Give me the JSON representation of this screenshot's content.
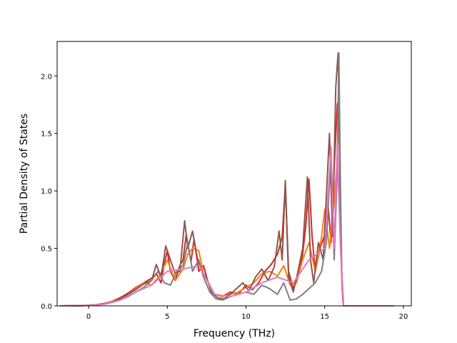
{
  "chart_data": {
    "type": "line",
    "xlabel": "Frequency (THz)",
    "ylabel": "Partial Density of States",
    "xlim": [
      -2.0,
      20.5
    ],
    "ylim": [
      0.0,
      2.3
    ],
    "xticks": [
      0,
      5,
      10,
      15,
      20
    ],
    "yticks": [
      0.0,
      0.5,
      1.0,
      1.5,
      2.0
    ],
    "xtick_labels": [
      "0",
      "5",
      "10",
      "15",
      "20"
    ],
    "ytick_labels": [
      "0.0",
      "0.5",
      "1.0",
      "1.5",
      "2.0"
    ],
    "grid": false,
    "series": [
      {
        "color": "#d62728",
        "x": [
          -1.8,
          -0.5,
          0.0,
          0.5,
          1.0,
          1.5,
          2.0,
          2.5,
          3.0,
          3.5,
          4.0,
          4.3,
          4.6,
          4.8,
          5.0,
          5.2,
          5.5,
          5.8,
          6.0,
          6.2,
          6.5,
          6.7,
          7.0,
          7.3,
          7.6,
          8.0,
          8.5,
          9.0,
          9.5,
          10.0,
          10.4,
          10.8,
          11.2,
          11.6,
          12.0,
          12.3,
          12.5,
          12.7,
          13.0,
          13.3,
          13.6,
          13.8,
          14.0,
          14.2,
          14.4,
          14.7,
          15.0,
          15.2,
          15.4,
          15.6,
          15.8,
          15.9,
          16.0,
          16.1,
          16.15,
          16.2,
          17.0,
          18.0,
          19.4
        ],
        "y": [
          0.0,
          0.0,
          0.005,
          0.01,
          0.02,
          0.04,
          0.07,
          0.11,
          0.16,
          0.2,
          0.24,
          0.28,
          0.2,
          0.36,
          0.48,
          0.3,
          0.22,
          0.35,
          0.4,
          0.62,
          0.38,
          0.58,
          0.3,
          0.35,
          0.2,
          0.1,
          0.08,
          0.12,
          0.1,
          0.18,
          0.14,
          0.2,
          0.3,
          0.36,
          0.45,
          0.6,
          1.05,
          0.3,
          0.15,
          0.25,
          0.45,
          0.7,
          1.1,
          0.6,
          0.3,
          0.5,
          0.62,
          0.9,
          0.55,
          1.2,
          1.75,
          1.8,
          0.7,
          0.2,
          0.05,
          0.0,
          0.0,
          0.0,
          0.0
        ]
      },
      {
        "color": "#ff7f0e",
        "x": [
          -1.8,
          0.0,
          0.5,
          1.0,
          1.5,
          2.0,
          2.5,
          3.0,
          3.5,
          4.0,
          4.5,
          5.0,
          5.5,
          6.0,
          6.3,
          6.6,
          7.0,
          7.3,
          7.7,
          8.0,
          8.5,
          9.0,
          9.5,
          10.0,
          10.5,
          11.0,
          11.5,
          12.0,
          12.4,
          12.8,
          13.2,
          13.6,
          14.0,
          14.4,
          14.8,
          15.0,
          15.3,
          15.6,
          15.8,
          16.0,
          16.1,
          16.2,
          19.4
        ],
        "y": [
          0.0,
          0.005,
          0.01,
          0.02,
          0.04,
          0.06,
          0.1,
          0.15,
          0.2,
          0.18,
          0.26,
          0.4,
          0.22,
          0.32,
          0.45,
          0.5,
          0.48,
          0.28,
          0.18,
          0.1,
          0.08,
          0.1,
          0.12,
          0.16,
          0.2,
          0.28,
          0.3,
          0.26,
          0.35,
          0.18,
          0.2,
          0.4,
          0.55,
          0.3,
          0.6,
          0.84,
          0.5,
          0.9,
          1.3,
          0.6,
          0.15,
          0.0,
          0.0
        ]
      },
      {
        "color": "#8c564b",
        "x": [
          -1.8,
          0.0,
          0.5,
          1.0,
          1.5,
          2.0,
          2.5,
          3.0,
          3.5,
          4.0,
          4.3,
          4.6,
          4.9,
          5.2,
          5.5,
          5.8,
          6.1,
          6.3,
          6.6,
          6.9,
          7.2,
          7.5,
          7.8,
          8.2,
          8.6,
          9.0,
          9.4,
          9.8,
          10.2,
          10.6,
          11.0,
          11.4,
          11.8,
          12.1,
          12.3,
          12.5,
          12.7,
          13.0,
          13.3,
          13.6,
          13.9,
          14.1,
          14.3,
          14.6,
          14.9,
          15.1,
          15.3,
          15.5,
          15.7,
          15.85,
          15.95,
          16.05,
          16.15,
          16.2,
          19.4
        ],
        "y": [
          0.0,
          0.005,
          0.01,
          0.02,
          0.035,
          0.06,
          0.1,
          0.14,
          0.19,
          0.22,
          0.36,
          0.25,
          0.52,
          0.4,
          0.28,
          0.3,
          0.74,
          0.5,
          0.65,
          0.42,
          0.3,
          0.24,
          0.12,
          0.07,
          0.06,
          0.1,
          0.15,
          0.2,
          0.13,
          0.25,
          0.32,
          0.22,
          0.34,
          0.65,
          0.4,
          1.09,
          0.25,
          0.12,
          0.3,
          0.5,
          1.12,
          0.4,
          0.2,
          0.55,
          0.4,
          0.95,
          1.5,
          0.6,
          1.9,
          2.2,
          1.4,
          0.4,
          0.08,
          0.0,
          0.0
        ]
      },
      {
        "color": "#7f7f7f",
        "x": [
          -1.8,
          0.0,
          0.5,
          1.0,
          1.5,
          2.0,
          2.5,
          3.0,
          3.5,
          4.0,
          4.4,
          4.8,
          5.2,
          5.6,
          6.0,
          6.3,
          6.6,
          7.0,
          7.3,
          7.7,
          8.1,
          8.5,
          9.0,
          9.5,
          10.0,
          10.5,
          11.0,
          11.5,
          12.0,
          12.4,
          12.8,
          13.2,
          13.6,
          14.0,
          14.4,
          14.8,
          15.1,
          15.4,
          15.6,
          15.8,
          15.9,
          16.0,
          16.1,
          16.2,
          19.4
        ],
        "y": [
          0.0,
          0.004,
          0.008,
          0.015,
          0.03,
          0.05,
          0.08,
          0.12,
          0.16,
          0.22,
          0.3,
          0.2,
          0.18,
          0.3,
          0.35,
          0.55,
          0.3,
          0.4,
          0.25,
          0.12,
          0.06,
          0.05,
          0.08,
          0.1,
          0.12,
          0.1,
          0.18,
          0.15,
          0.1,
          0.2,
          0.05,
          0.06,
          0.1,
          0.15,
          0.2,
          0.3,
          0.55,
          1.33,
          0.4,
          1.2,
          2.2,
          1.0,
          0.2,
          0.0,
          0.0
        ]
      },
      {
        "color": "#e377c2",
        "x": [
          -1.8,
          0.0,
          1.0,
          2.0,
          3.0,
          4.0,
          5.0,
          6.0,
          7.0,
          8.0,
          9.0,
          10.0,
          11.0,
          12.0,
          13.0,
          14.0,
          15.0,
          15.4,
          15.6,
          15.8,
          16.0,
          16.2,
          19.4
        ],
        "y": [
          0.0,
          0.004,
          0.015,
          0.05,
          0.12,
          0.18,
          0.3,
          0.32,
          0.35,
          0.1,
          0.08,
          0.12,
          0.2,
          0.25,
          0.2,
          0.4,
          0.5,
          1.38,
          0.5,
          1.4,
          0.5,
          0.0,
          0.0
        ]
      }
    ]
  }
}
